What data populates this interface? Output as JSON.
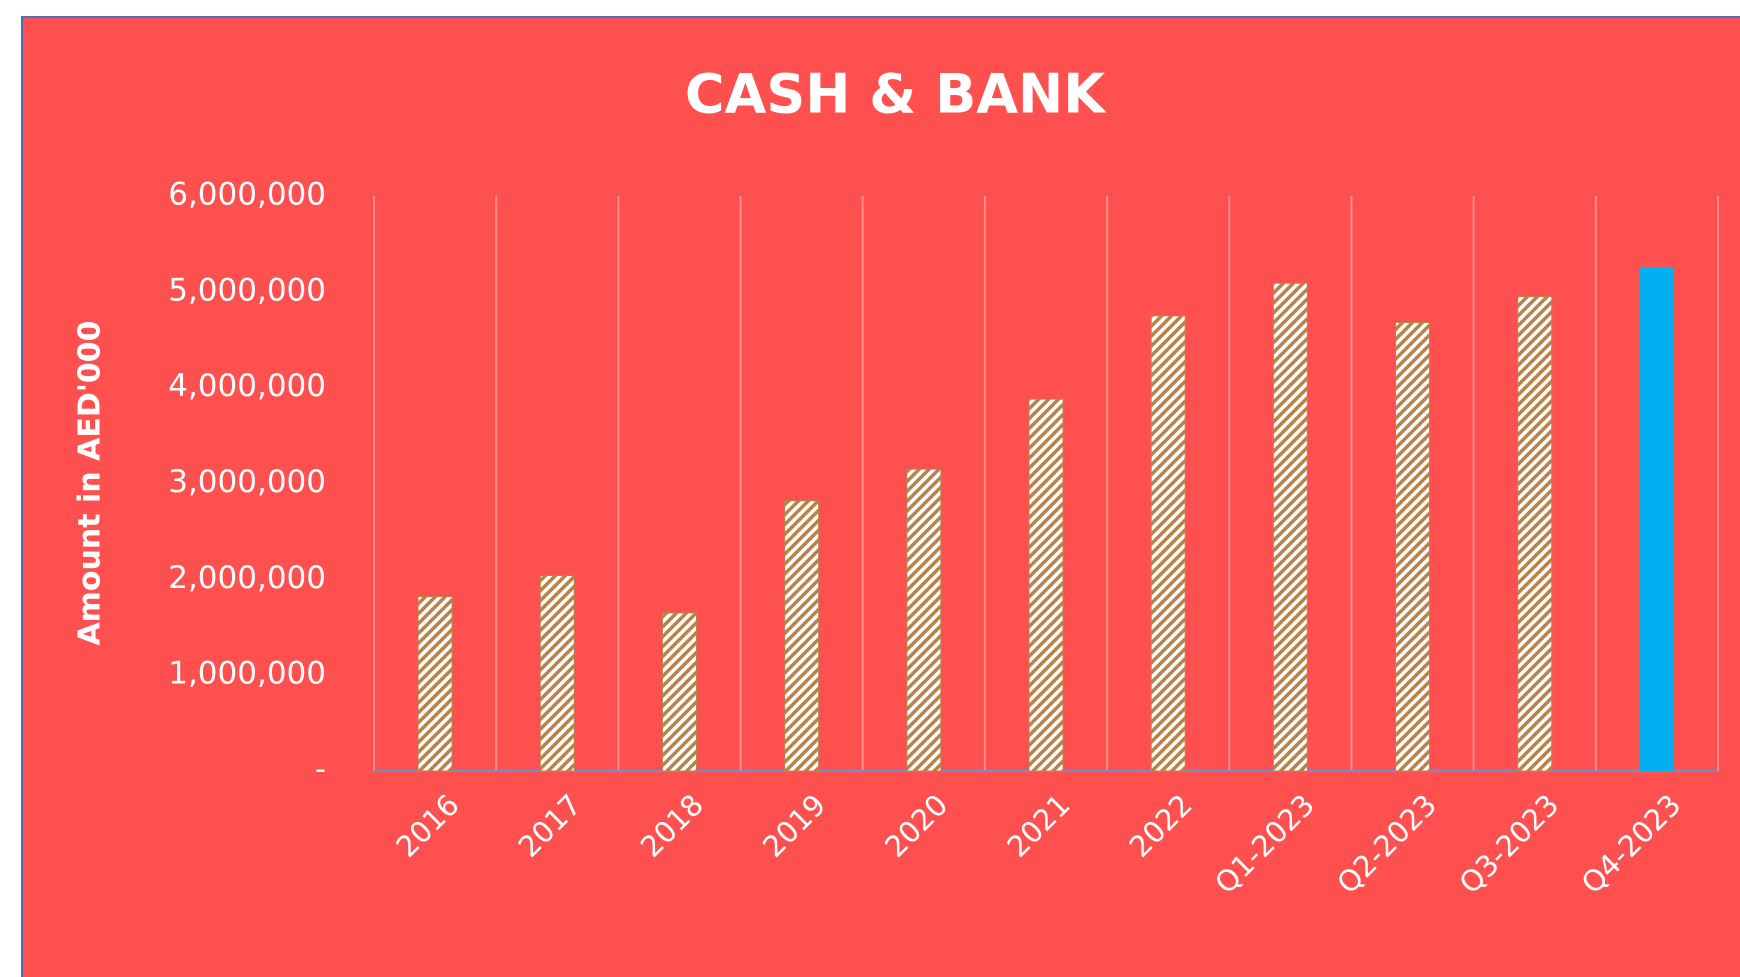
{
  "chart_data": {
    "type": "bar",
    "title": "CASH & BANK",
    "y_label": "Amount in AED'000",
    "categories": [
      "2016",
      "2017",
      "2018",
      "2019",
      "2020",
      "2021",
      "2022",
      "Q1-2023",
      "Q2-2023",
      "Q3-2023",
      "Q4-2023"
    ],
    "values": [
      1820000,
      2040000,
      1650000,
      2820000,
      3150000,
      3880000,
      4750000,
      5090000,
      4680000,
      4950000,
      5260000
    ],
    "colors": [
      "#b8824a",
      "#b8824a",
      "#b8824a",
      "#b8824a",
      "#b8824a",
      "#b8824a",
      "#b8824a",
      "#b8824a",
      "#b8824a",
      "#b8824a",
      "#00b0f0"
    ],
    "hatched": [
      true,
      true,
      true,
      true,
      true,
      true,
      true,
      true,
      true,
      true,
      false
    ],
    "background": "#ff5050",
    "ylim": [
      0,
      6000000
    ],
    "yticks": [
      {
        "value": 0,
        "label": "-"
      },
      {
        "value": 1000000,
        "label": "1,000,000"
      },
      {
        "value": 2000000,
        "label": "2,000,000"
      },
      {
        "value": 3000000,
        "label": "3,000,000"
      },
      {
        "value": 4000000,
        "label": "4,000,000"
      },
      {
        "value": 5000000,
        "label": "5,000,000"
      },
      {
        "value": 6000000,
        "label": "6,000,000"
      }
    ],
    "vertical_grid": true
  }
}
